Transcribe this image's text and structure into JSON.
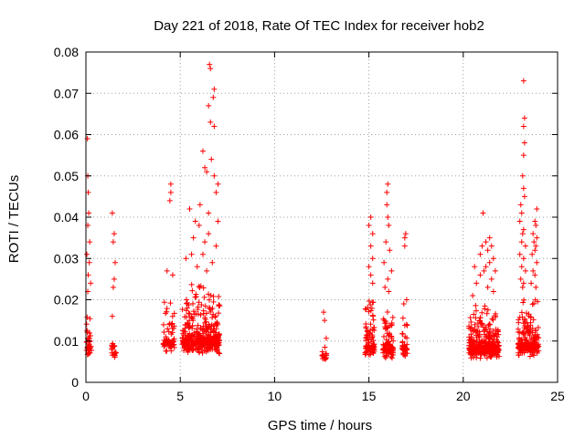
{
  "chart_data": {
    "type": "scatter",
    "title": "Day 221 of 2018, Rate Of TEC Index for receiver hob2",
    "xlabel": "GPS time / hours",
    "ylabel": "ROTI / TECUs",
    "xlim": [
      0,
      25
    ],
    "ylim": [
      0,
      0.08
    ],
    "x_ticks": [
      0,
      5,
      10,
      15,
      20,
      25
    ],
    "y_ticks": [
      0,
      0.01,
      0.02,
      0.03,
      0.04,
      0.05,
      0.06,
      0.07,
      0.08
    ],
    "grid": true,
    "legend": "none",
    "marker": "plus",
    "color": "#ff0000",
    "clusters": [
      {
        "x_range": [
          0.0,
          0.3
        ],
        "base_range": [
          0.003,
          0.019
        ],
        "count": 40,
        "outliers": [
          [
            0.08,
            0.059
          ],
          [
            0.1,
            0.05
          ],
          [
            0.12,
            0.046
          ],
          [
            0.15,
            0.041
          ],
          [
            0.1,
            0.038
          ],
          [
            0.2,
            0.034
          ],
          [
            0.05,
            0.031
          ],
          [
            0.18,
            0.029
          ],
          [
            0.12,
            0.026
          ],
          [
            0.25,
            0.024
          ],
          [
            0.1,
            0.022
          ]
        ]
      },
      {
        "x_range": [
          1.35,
          1.6
        ],
        "base_range": [
          0.004,
          0.013
        ],
        "count": 20,
        "outliers": [
          [
            1.4,
            0.041
          ],
          [
            1.5,
            0.036
          ],
          [
            1.45,
            0.034
          ],
          [
            1.55,
            0.029
          ],
          [
            1.5,
            0.025
          ],
          [
            1.45,
            0.023
          ],
          [
            1.4,
            0.016
          ]
        ]
      },
      {
        "x_range": [
          4.1,
          4.7
        ],
        "base_range": [
          0.003,
          0.022
        ],
        "count": 70,
        "outliers": [
          [
            4.5,
            0.048
          ],
          [
            4.5,
            0.046
          ],
          [
            4.45,
            0.044
          ],
          [
            4.3,
            0.027
          ],
          [
            4.6,
            0.026
          ]
        ]
      },
      {
        "x_range": [
          5.1,
          7.1
        ],
        "base_range": [
          0.002,
          0.025
        ],
        "count": 420,
        "outliers": [
          [
            6.55,
            0.077
          ],
          [
            6.6,
            0.076
          ],
          [
            6.8,
            0.071
          ],
          [
            6.75,
            0.069
          ],
          [
            6.5,
            0.067
          ],
          [
            6.6,
            0.063
          ],
          [
            6.8,
            0.062
          ],
          [
            6.2,
            0.056
          ],
          [
            6.65,
            0.054
          ],
          [
            6.3,
            0.052
          ],
          [
            6.4,
            0.051
          ],
          [
            6.8,
            0.05
          ],
          [
            7.0,
            0.048
          ],
          [
            6.9,
            0.046
          ],
          [
            6.05,
            0.043
          ],
          [
            5.5,
            0.042
          ],
          [
            6.5,
            0.041
          ],
          [
            5.8,
            0.039
          ],
          [
            6.0,
            0.038
          ],
          [
            7.0,
            0.039
          ],
          [
            6.5,
            0.036
          ],
          [
            5.7,
            0.035
          ],
          [
            6.3,
            0.034
          ],
          [
            6.9,
            0.033
          ],
          [
            5.6,
            0.031
          ],
          [
            6.2,
            0.031
          ],
          [
            5.3,
            0.03
          ],
          [
            6.7,
            0.029
          ],
          [
            5.9,
            0.028
          ],
          [
            6.4,
            0.027
          ]
        ]
      },
      {
        "x_range": [
          12.5,
          12.75
        ],
        "base_range": [
          0.003,
          0.013
        ],
        "count": 20,
        "outliers": [
          [
            12.6,
            0.017
          ],
          [
            12.65,
            0.015
          ]
        ]
      },
      {
        "x_range": [
          14.8,
          15.3
        ],
        "base_range": [
          0.002,
          0.022
        ],
        "count": 90,
        "outliers": [
          [
            15.1,
            0.04
          ],
          [
            15.0,
            0.038
          ],
          [
            15.2,
            0.036
          ],
          [
            15.1,
            0.033
          ],
          [
            15.2,
            0.03
          ],
          [
            15.0,
            0.028
          ],
          [
            15.1,
            0.026
          ],
          [
            15.2,
            0.024
          ]
        ]
      },
      {
        "x_range": [
          15.75,
          16.3
        ],
        "base_range": [
          0.002,
          0.02
        ],
        "count": 90,
        "outliers": [
          [
            16.0,
            0.048
          ],
          [
            15.95,
            0.046
          ],
          [
            15.95,
            0.043
          ],
          [
            16.0,
            0.04
          ],
          [
            16.05,
            0.038
          ],
          [
            15.9,
            0.034
          ],
          [
            16.1,
            0.032
          ],
          [
            15.8,
            0.029
          ],
          [
            16.2,
            0.027
          ],
          [
            16.0,
            0.025
          ],
          [
            15.85,
            0.023
          ],
          [
            16.05,
            0.022
          ]
        ]
      },
      {
        "x_range": [
          16.75,
          17.05
        ],
        "base_range": [
          0.003,
          0.018
        ],
        "count": 40,
        "outliers": [
          [
            16.95,
            0.036
          ],
          [
            16.9,
            0.035
          ],
          [
            16.9,
            0.033
          ],
          [
            17.0,
            0.02
          ],
          [
            16.85,
            0.019
          ]
        ]
      },
      {
        "x_range": [
          20.3,
          21.9
        ],
        "base_range": [
          0.002,
          0.02
        ],
        "count": 380,
        "outliers": [
          [
            21.05,
            0.041
          ],
          [
            21.4,
            0.035
          ],
          [
            21.2,
            0.034
          ],
          [
            21.0,
            0.033
          ],
          [
            21.5,
            0.033
          ],
          [
            21.3,
            0.032
          ],
          [
            20.9,
            0.031
          ],
          [
            21.6,
            0.03
          ],
          [
            21.4,
            0.029
          ],
          [
            20.6,
            0.028
          ],
          [
            21.2,
            0.028
          ],
          [
            21.7,
            0.027
          ],
          [
            21.1,
            0.027
          ],
          [
            20.9,
            0.026
          ],
          [
            21.5,
            0.025
          ],
          [
            20.7,
            0.024
          ],
          [
            21.3,
            0.023
          ],
          [
            21.6,
            0.022
          ],
          [
            20.5,
            0.021
          ]
        ]
      },
      {
        "x_range": [
          22.9,
          23.5
        ],
        "base_range": [
          0.002,
          0.022
        ],
        "count": 120,
        "outliers": [
          [
            23.2,
            0.073
          ],
          [
            23.25,
            0.064
          ],
          [
            23.2,
            0.062
          ],
          [
            23.25,
            0.058
          ],
          [
            23.2,
            0.055
          ],
          [
            23.15,
            0.05
          ],
          [
            23.2,
            0.047
          ],
          [
            23.25,
            0.045
          ],
          [
            23.05,
            0.043
          ],
          [
            23.1,
            0.041
          ],
          [
            23.0,
            0.039
          ],
          [
            23.2,
            0.037
          ],
          [
            23.15,
            0.036
          ],
          [
            23.1,
            0.034
          ],
          [
            23.3,
            0.033
          ],
          [
            23.0,
            0.031
          ],
          [
            23.2,
            0.03
          ],
          [
            23.1,
            0.028
          ],
          [
            23.3,
            0.027
          ],
          [
            23.05,
            0.025
          ],
          [
            23.2,
            0.024
          ],
          [
            23.15,
            0.023
          ]
        ]
      },
      {
        "x_range": [
          23.5,
          24.0
        ],
        "base_range": [
          0.002,
          0.022
        ],
        "count": 110,
        "outliers": [
          [
            23.9,
            0.042
          ],
          [
            23.8,
            0.039
          ],
          [
            23.85,
            0.038
          ],
          [
            23.7,
            0.036
          ],
          [
            23.9,
            0.035
          ],
          [
            23.75,
            0.034
          ],
          [
            23.85,
            0.033
          ],
          [
            23.8,
            0.032
          ],
          [
            23.65,
            0.031
          ],
          [
            23.9,
            0.029
          ],
          [
            23.7,
            0.027
          ],
          [
            23.8,
            0.026
          ],
          [
            23.6,
            0.024
          ],
          [
            23.85,
            0.023
          ]
        ]
      }
    ]
  }
}
